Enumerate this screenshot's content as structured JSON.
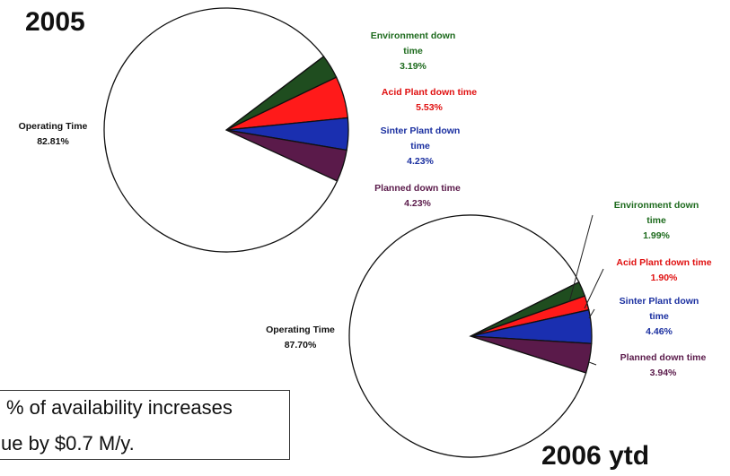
{
  "chart_data": [
    {
      "type": "pie",
      "title": "2005",
      "slices": [
        {
          "label": "Operating Time",
          "value": 82.81,
          "display": "82.81%",
          "color": "#ffffff"
        },
        {
          "label": "Environment down time",
          "value": 3.19,
          "display": "3.19%",
          "color": "#1f4d1f"
        },
        {
          "label": "Acid Plant down time",
          "value": 5.53,
          "display": "5.53%",
          "color": "#ff1a1a"
        },
        {
          "label": "Sinter Plant down time",
          "value": 4.23,
          "display": "4.23%",
          "color": "#1a2fb0"
        },
        {
          "label": "Planned down time",
          "value": 4.23,
          "display": "4.23%",
          "color": "#5a1a4a"
        }
      ]
    },
    {
      "type": "pie",
      "title": "2006 ytd",
      "slices": [
        {
          "label": "Operating Time",
          "value": 87.7,
          "display": "87.70%",
          "color": "#ffffff"
        },
        {
          "label": "Environment down time",
          "value": 1.99,
          "display": "1.99%",
          "color": "#1f4d1f"
        },
        {
          "label": "Acid Plant down time",
          "value": 1.9,
          "display": "1.90%",
          "color": "#ff1a1a"
        },
        {
          "label": "Sinter Plant down time",
          "value": 4.46,
          "display": "4.46%",
          "color": "#1a2fb0"
        },
        {
          "label": "Planned down time",
          "value": 3.94,
          "display": "3.94%",
          "color": "#5a1a4a"
        }
      ]
    }
  ],
  "label_colors": {
    "environment": "#1e6b1e",
    "acid": "#e01010",
    "sinter": "#1a2fa0",
    "planned": "#5a1a4a",
    "operating": "#111111"
  },
  "labels_2005": {
    "environment": [
      "Environment down",
      "time",
      "3.19%"
    ],
    "acid": [
      "Acid Plant down time",
      "5.53%"
    ],
    "sinter": [
      "Sinter Plant down",
      "time",
      "4.23%"
    ],
    "planned": [
      "Planned down time",
      "4.23%"
    ],
    "operating": [
      "Operating Time",
      "82.81%"
    ]
  },
  "labels_2006": {
    "environment": [
      "Environment down",
      "time",
      "1.99%"
    ],
    "acid": [
      "Acid Plant down time",
      "1.90%"
    ],
    "sinter": [
      "Sinter Plant down",
      "time",
      "4.46%"
    ],
    "planned": [
      "Planned down time",
      "3.94%"
    ],
    "operating": [
      "Operating Time",
      "87.70%"
    ]
  },
  "callout": {
    "line1": "% of availability increases",
    "line2": "ue by $0.7 M/y."
  }
}
